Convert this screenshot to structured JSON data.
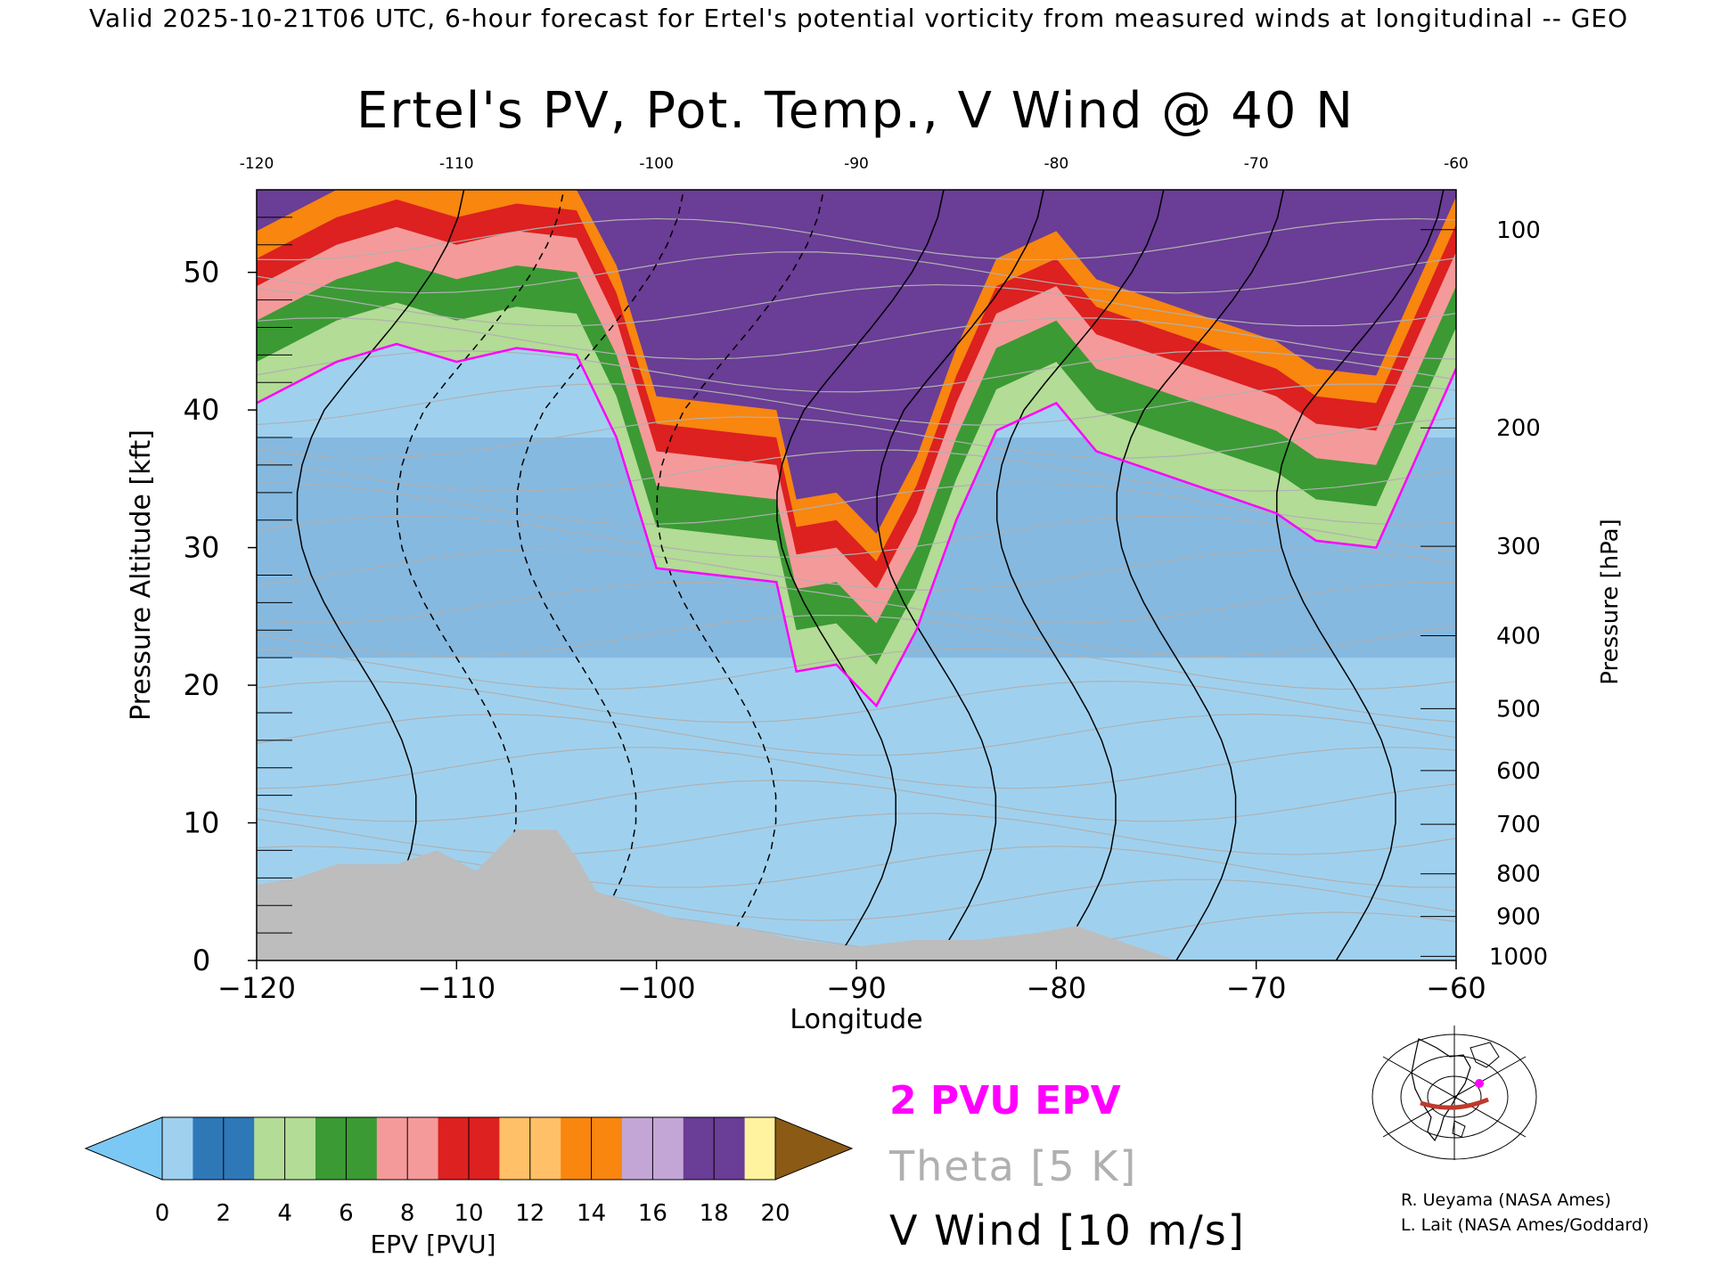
{
  "header": {
    "valid_line": "Valid 2025-10-21T06 UTC, 6-hour forecast for Ertel's potential vorticity from measured winds at longitudinal -- GEO"
  },
  "chart_data": {
    "type": "heatmap",
    "title": "Ertel's PV, Pot. Temp., V Wind @ 40 N",
    "xlabel": "Longitude",
    "ylabel_left": "Pressure Altitude [kft]",
    "ylabel_right": "Pressure [hPa]",
    "xlim": [
      -120,
      -60
    ],
    "ylim": [
      0,
      56
    ],
    "x_ticks": [
      -120,
      -110,
      -100,
      -90,
      -80,
      -70,
      -60
    ],
    "x_tick_labels": [
      "−120",
      "−110",
      "−100",
      "−90",
      "−80",
      "−70",
      "−60"
    ],
    "top_tick_labels": [
      "-120",
      "-110",
      "-100",
      "-90",
      "-80",
      "-70",
      "-60"
    ],
    "y_ticks": [
      0,
      10,
      20,
      30,
      40,
      50
    ],
    "y_tick_labels": [
      "0",
      "10",
      "20",
      "30",
      "40",
      "50"
    ],
    "pressure_levels": [
      {
        "hpa": 1000,
        "kft": 0.3
      },
      {
        "hpa": 900,
        "kft": 3.2
      },
      {
        "hpa": 800,
        "kft": 6.3
      },
      {
        "hpa": 700,
        "kft": 9.9
      },
      {
        "hpa": 600,
        "kft": 13.8
      },
      {
        "hpa": 500,
        "kft": 18.3
      },
      {
        "hpa": 400,
        "kft": 23.6
      },
      {
        "hpa": 300,
        "kft": 30.1
      },
      {
        "hpa": 200,
        "kft": 38.7
      },
      {
        "hpa": 100,
        "kft": 53.1
      }
    ],
    "tropopause_2pvu_kft": [
      {
        "lon": -120,
        "kft": 40.5
      },
      {
        "lon": -116,
        "kft": 43.5
      },
      {
        "lon": -113,
        "kft": 44.8
      },
      {
        "lon": -110,
        "kft": 43.5
      },
      {
        "lon": -107,
        "kft": 44.5
      },
      {
        "lon": -104,
        "kft": 44.0
      },
      {
        "lon": -102,
        "kft": 38.0
      },
      {
        "lon": -100,
        "kft": 28.5
      },
      {
        "lon": -97,
        "kft": 28.0
      },
      {
        "lon": -94,
        "kft": 27.5
      },
      {
        "lon": -93,
        "kft": 21.0
      },
      {
        "lon": -91,
        "kft": 21.5
      },
      {
        "lon": -89,
        "kft": 18.5
      },
      {
        "lon": -87,
        "kft": 24.0
      },
      {
        "lon": -85,
        "kft": 32.0
      },
      {
        "lon": -83,
        "kft": 38.5
      },
      {
        "lon": -80,
        "kft": 40.5
      },
      {
        "lon": -78,
        "kft": 37.0
      },
      {
        "lon": -75,
        "kft": 35.5
      },
      {
        "lon": -72,
        "kft": 34.0
      },
      {
        "lon": -69,
        "kft": 32.5
      },
      {
        "lon": -67,
        "kft": 30.5
      },
      {
        "lon": -64,
        "kft": 30.0
      },
      {
        "lon": -60,
        "kft": 43.0
      }
    ],
    "terrain_kft": [
      {
        "lon": -120,
        "kft": 5.5
      },
      {
        "lon": -118,
        "kft": 6.0
      },
      {
        "lon": -116,
        "kft": 7.0
      },
      {
        "lon": -113,
        "kft": 7.0
      },
      {
        "lon": -111,
        "kft": 8.0
      },
      {
        "lon": -109,
        "kft": 6.5
      },
      {
        "lon": -108,
        "kft": 8.0
      },
      {
        "lon": -107,
        "kft": 9.5
      },
      {
        "lon": -105,
        "kft": 9.5
      },
      {
        "lon": -104,
        "kft": 7.5
      },
      {
        "lon": -103,
        "kft": 5.0
      },
      {
        "lon": -101,
        "kft": 4.0
      },
      {
        "lon": -99,
        "kft": 3.0
      },
      {
        "lon": -96,
        "kft": 2.5
      },
      {
        "lon": -93,
        "kft": 1.5
      },
      {
        "lon": -90,
        "kft": 1.0
      },
      {
        "lon": -87,
        "kft": 1.5
      },
      {
        "lon": -84,
        "kft": 1.5
      },
      {
        "lon": -81,
        "kft": 2.0
      },
      {
        "lon": -79,
        "kft": 2.5
      },
      {
        "lon": -77,
        "kft": 1.5
      },
      {
        "lon": -75,
        "kft": 0.5
      },
      {
        "lon": -74,
        "kft": 0.0
      }
    ],
    "colorbar": {
      "label": "EPV [PVU]",
      "tick_labels": [
        "0",
        "2",
        "4",
        "6",
        "8",
        "10",
        "12",
        "14",
        "16",
        "18",
        "20"
      ],
      "colors": [
        "#9fd1ef",
        "#2f78b8",
        "#b3dc96",
        "#3b9a34",
        "#f59a9a",
        "#dd2020",
        "#ffc067",
        "#f8860f",
        "#c4a6d6",
        "#6a3d96",
        "#fff3a0",
        "#8b5a14"
      ],
      "under_color": "#7cc8f4",
      "over_color": "#8b5a14"
    },
    "legend": {
      "epv": "2 PVU EPV",
      "theta": "Theta [5 K]",
      "vwind": "V Wind [10 m/s]",
      "epv_color": "#ff00ff",
      "theta_color": "#b0b0b0",
      "vwind_color": "#000000"
    }
  },
  "credits": {
    "line1": "R. Ueyama (NASA Ames)",
    "line2": "L. Lait (NASA Ames/Goddard)"
  },
  "map_inset": {
    "icon": "globe-map-icon",
    "section_color": "#c0392b",
    "marker_color": "#ff00ff"
  }
}
